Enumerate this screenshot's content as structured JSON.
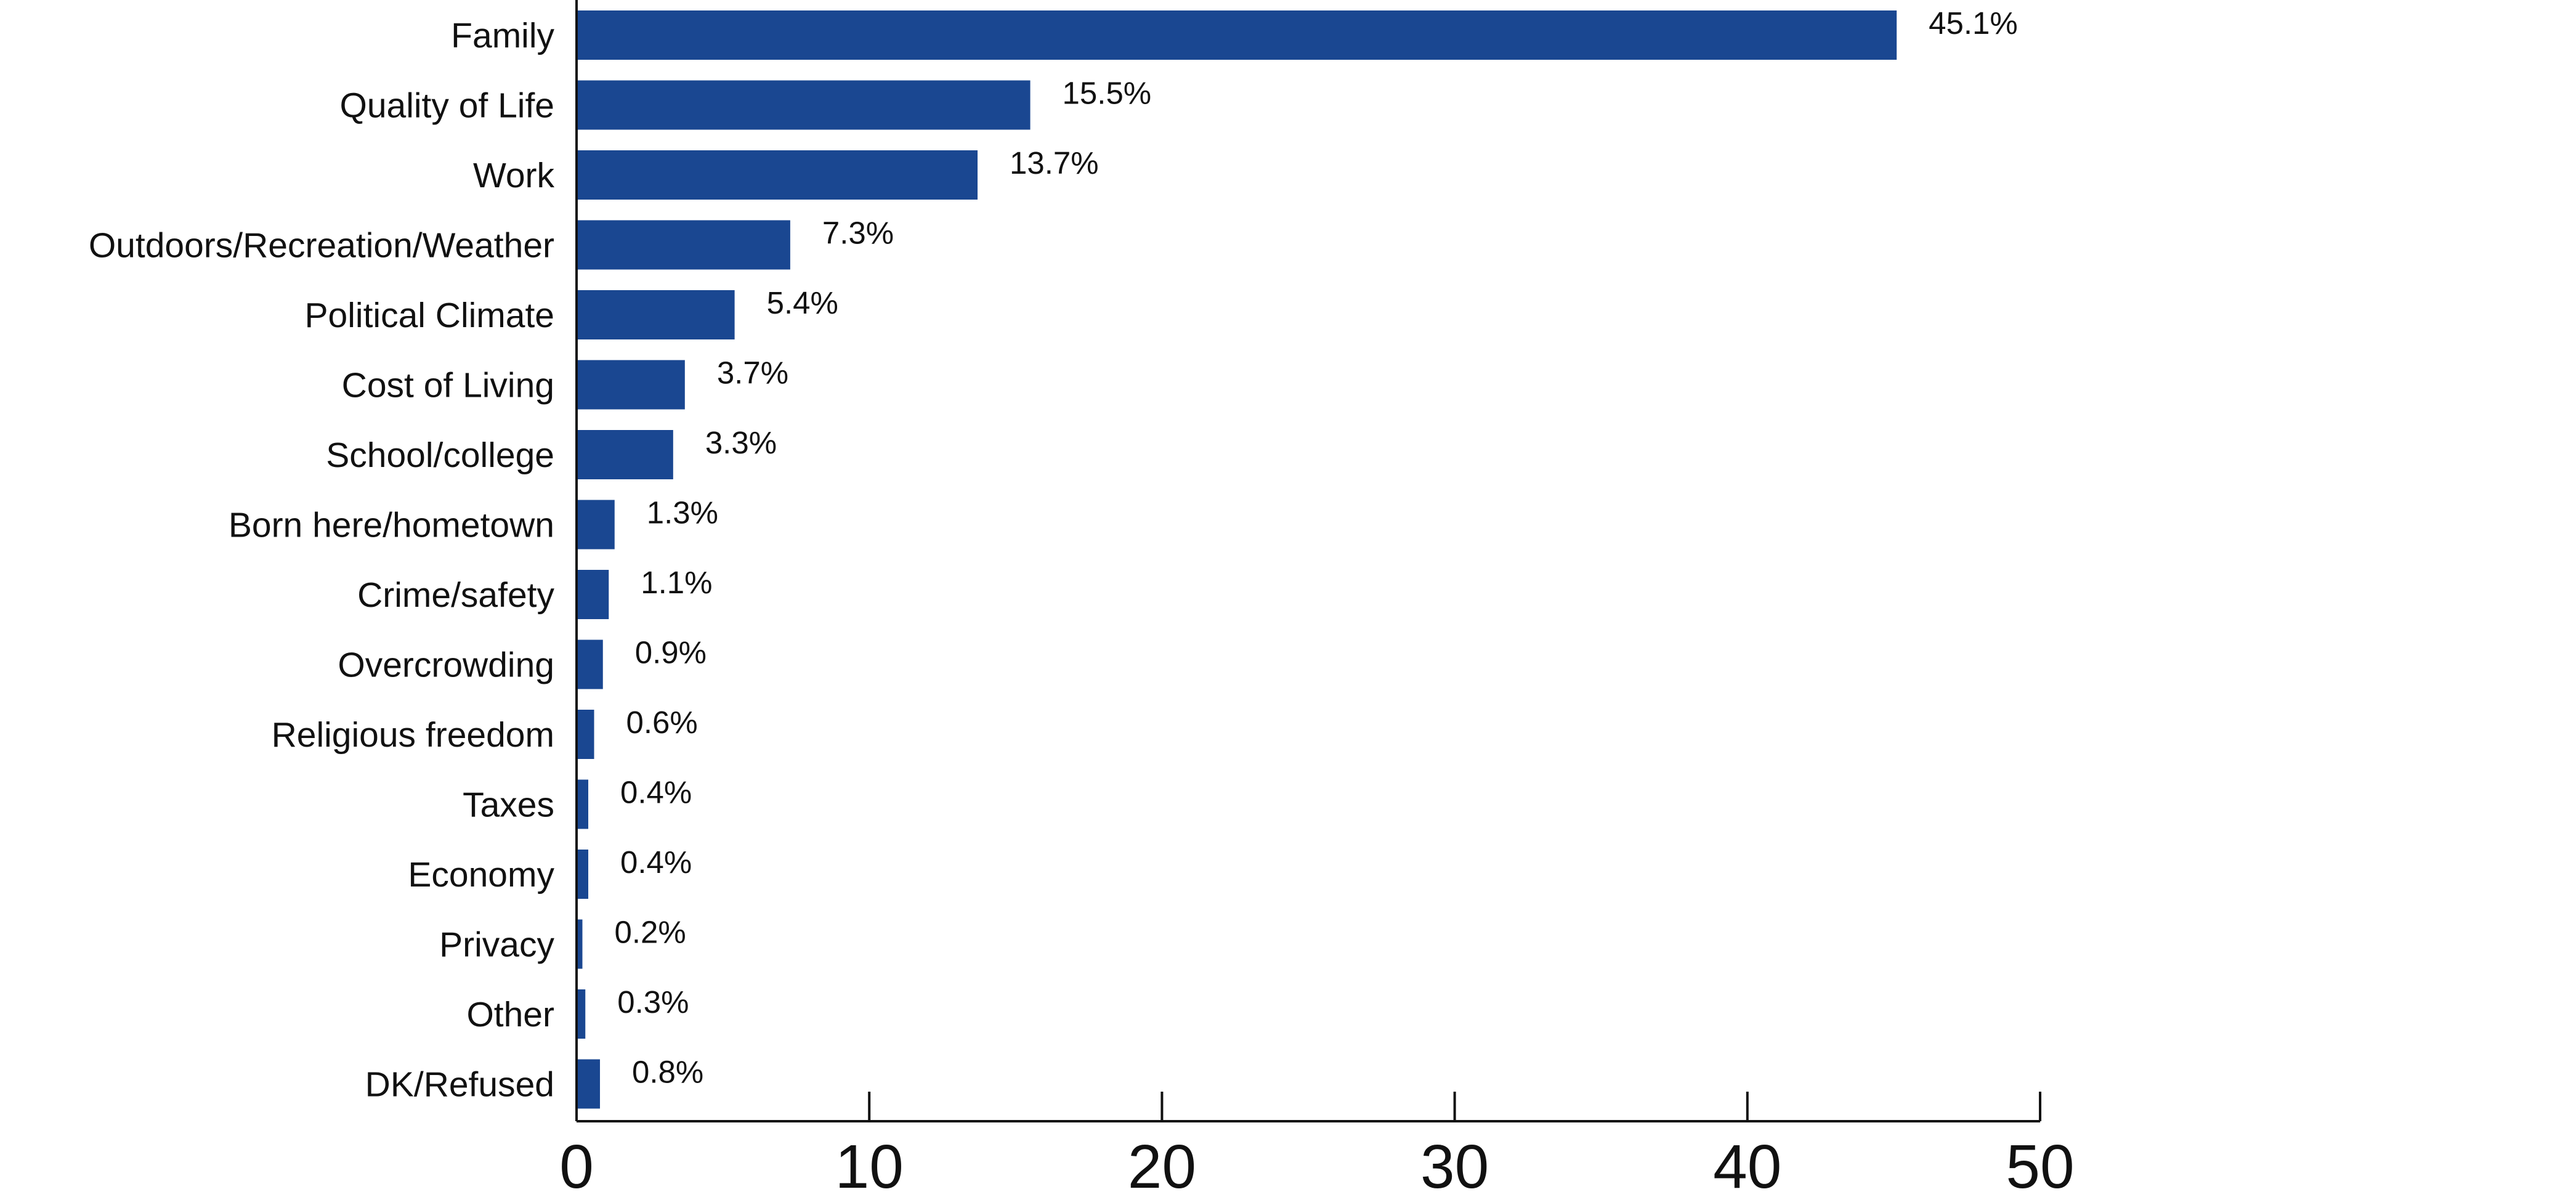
{
  "chart_data": {
    "type": "bar",
    "orientation": "horizontal",
    "title": "",
    "xlabel": "",
    "ylabel": "",
    "categories": [
      "Family",
      "Quality of Life",
      "Work",
      "Outdoors/Recreation/Weather",
      "Political Climate",
      "Cost of Living",
      "School/college",
      "Born here/hometown",
      "Crime/safety",
      "Overcrowding",
      "Religious freedom",
      "Taxes",
      "Economy",
      "Privacy",
      "Other",
      "DK/Refused"
    ],
    "values": [
      45.1,
      15.5,
      13.7,
      7.3,
      5.4,
      3.7,
      3.3,
      1.3,
      1.1,
      0.9,
      0.6,
      0.4,
      0.4,
      0.2,
      0.3,
      0.8
    ],
    "value_labels": [
      "45.1%",
      "15.5%",
      "13.7%",
      "7.3%",
      "5.4%",
      "3.7%",
      "3.3%",
      "1.3%",
      "1.1%",
      "0.9%",
      "0.6%",
      "0.4%",
      "0.4%",
      "0.2%",
      "0.3%",
      "0.8%"
    ],
    "xlim": [
      0,
      50
    ],
    "xticks": [
      0,
      10,
      20,
      30,
      40,
      50
    ],
    "grid": false,
    "legend": "none",
    "bar_color": "#1a4791"
  }
}
